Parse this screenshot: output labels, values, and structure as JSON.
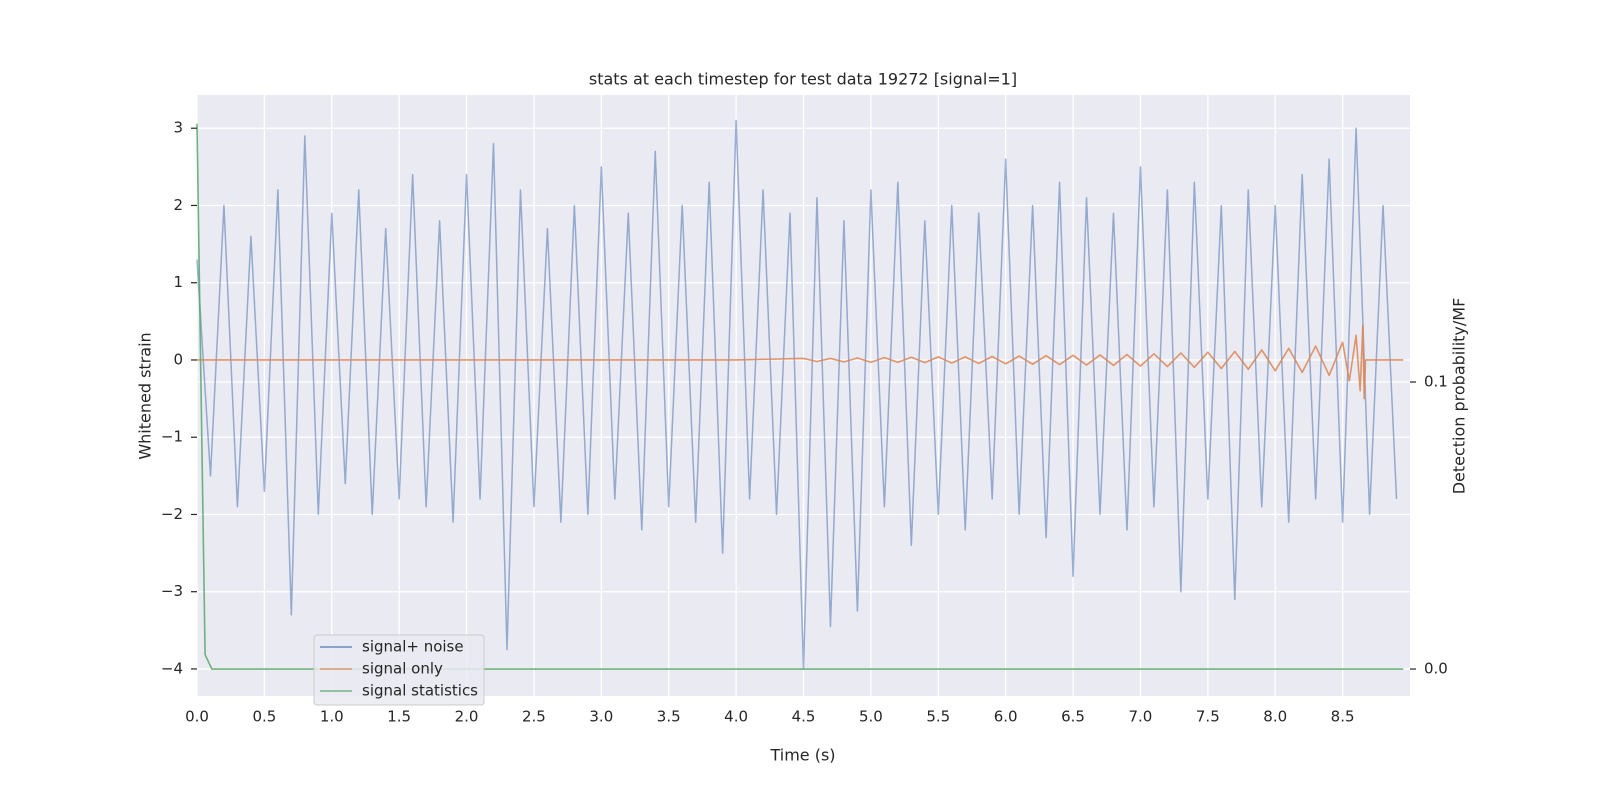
{
  "chart_data": {
    "type": "line",
    "title": "stats at each timestep for test data 19272 [signal=1]",
    "xlabel": "Time (s)",
    "ylabel": "Whitened strain",
    "y2label": "Detection probability/MF",
    "xlim": [
      0,
      9.0
    ],
    "ylim": [
      -4.35,
      3.43
    ],
    "y2lim": [
      -0.0094,
      0.2
    ],
    "xticks": [
      {
        "value": 0,
        "label": "0.0"
      },
      0.5,
      {
        "value": 1,
        "label": "1.0"
      },
      1.5,
      {
        "value": 2,
        "label": "2.0"
      },
      2.5,
      {
        "value": 3,
        "label": "3.0"
      },
      3.5,
      {
        "value": 4,
        "label": "4.0"
      },
      4.5,
      {
        "value": 5,
        "label": "5.0"
      },
      5.5,
      {
        "value": 6,
        "label": "6.0"
      },
      6.5,
      {
        "value": 7,
        "label": "7.0"
      },
      7.5,
      {
        "value": 8,
        "label": "8.0"
      },
      8.5
    ],
    "yticks": [
      {
        "value": -4,
        "label": "−4"
      },
      {
        "value": -3,
        "label": "−3"
      },
      {
        "value": -2,
        "label": "−2"
      },
      {
        "value": -1,
        "label": "−1"
      },
      0,
      1,
      2,
      3
    ],
    "y2ticks": [
      {
        "value": 0,
        "label": "0.0"
      },
      0.1
    ],
    "grid": true,
    "legend_loc": "lower left",
    "series": [
      {
        "name": "signal+ noise",
        "color": "#4c72b0",
        "x": [
          0,
          0.1,
          0.2,
          0.3,
          0.4,
          0.5,
          0.6,
          0.7,
          0.8,
          0.9,
          1.0,
          1.1,
          1.2,
          1.3,
          1.4,
          1.5,
          1.6,
          1.7,
          1.8,
          1.9,
          2.0,
          2.1,
          2.2,
          2.3,
          2.4,
          2.5,
          2.6,
          2.7,
          2.8,
          2.9,
          3.0,
          3.1,
          3.2,
          3.3,
          3.4,
          3.5,
          3.6,
          3.7,
          3.8,
          3.9,
          4.0,
          4.1,
          4.2,
          4.3,
          4.4,
          4.5,
          4.6,
          4.7,
          4.8,
          4.9,
          5.0,
          5.1,
          5.2,
          5.3,
          5.4,
          5.5,
          5.6,
          5.7,
          5.8,
          5.9,
          6.0,
          6.1,
          6.2,
          6.3,
          6.4,
          6.5,
          6.6,
          6.7,
          6.8,
          6.9,
          7.0,
          7.1,
          7.2,
          7.3,
          7.4,
          7.5,
          7.6,
          7.7,
          7.8,
          7.9,
          8.0,
          8.1,
          8.2,
          8.3,
          8.4,
          8.5,
          8.6,
          8.7,
          8.8,
          8.9
        ],
        "values": [
          1.3,
          -1.5,
          2.0,
          -1.9,
          1.6,
          -1.7,
          2.2,
          -3.3,
          2.9,
          -2.0,
          1.9,
          -1.6,
          2.2,
          -2.0,
          1.7,
          -1.8,
          2.4,
          -1.9,
          1.8,
          -2.1,
          2.4,
          -1.8,
          2.8,
          -3.75,
          2.2,
          -1.9,
          1.7,
          -2.1,
          2.0,
          -2.0,
          2.5,
          -1.8,
          1.9,
          -2.2,
          2.7,
          -1.9,
          2.0,
          -2.1,
          2.3,
          -2.5,
          3.1,
          -1.8,
          2.2,
          -2.0,
          1.9,
          -4.0,
          2.1,
          -3.45,
          1.8,
          -3.25,
          2.2,
          -1.9,
          2.3,
          -2.4,
          1.8,
          -2.0,
          2.0,
          -2.2,
          1.9,
          -1.8,
          2.6,
          -2.0,
          2.0,
          -2.3,
          2.3,
          -2.8,
          2.1,
          -2.0,
          1.9,
          -2.2,
          2.5,
          -1.9,
          2.2,
          -3.0,
          2.3,
          -1.8,
          2.0,
          -3.1,
          2.2,
          -1.9,
          2.0,
          -2.1,
          2.4,
          -1.8,
          2.6,
          -2.1,
          3.0,
          -2.0,
          2.0,
          -1.8
        ]
      },
      {
        "name": "signal only",
        "color": "#dd8452",
        "x": [
          0,
          4.0,
          4.5,
          4.6,
          4.7,
          4.8,
          4.9,
          5.0,
          5.1,
          5.2,
          5.3,
          5.4,
          5.5,
          5.6,
          5.7,
          5.8,
          5.9,
          6.0,
          6.1,
          6.2,
          6.3,
          6.4,
          6.5,
          6.6,
          6.7,
          6.8,
          6.9,
          7.0,
          7.1,
          7.2,
          7.3,
          7.4,
          7.5,
          7.6,
          7.7,
          7.8,
          7.9,
          8.0,
          8.1,
          8.2,
          8.3,
          8.4,
          8.5,
          8.55,
          8.6,
          8.63,
          8.65,
          8.66,
          8.67,
          8.95
        ],
        "values": [
          0,
          0,
          0.02,
          -0.02,
          0.02,
          -0.025,
          0.025,
          -0.03,
          0.03,
          -0.03,
          0.035,
          -0.035,
          0.04,
          -0.04,
          0.04,
          -0.045,
          0.045,
          -0.05,
          0.05,
          -0.055,
          0.055,
          -0.06,
          0.06,
          -0.065,
          0.065,
          -0.07,
          0.07,
          -0.08,
          0.08,
          -0.085,
          0.09,
          -0.095,
          0.1,
          -0.11,
          0.11,
          -0.12,
          0.13,
          -0.14,
          0.15,
          -0.16,
          0.18,
          -0.2,
          0.23,
          -0.27,
          0.32,
          -0.4,
          0.45,
          -0.5,
          0,
          0
        ]
      },
      {
        "name": "signal statistics",
        "color": "#55a868",
        "axis": "y2",
        "x": [
          0,
          0.06,
          0.11,
          8.95
        ],
        "values": [
          0.19,
          0.005,
          0,
          0
        ]
      }
    ]
  }
}
